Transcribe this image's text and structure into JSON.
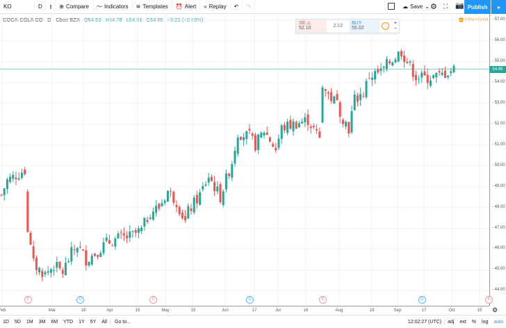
{
  "toolbar": {
    "symbol": "KO",
    "interval": "D",
    "compare": "Compare",
    "indicators": "Indicators",
    "templates": "Templates",
    "alert": "Alert",
    "replay": "Replay",
    "undo": "↶",
    "redo": "↷",
    "save": "Save",
    "publish": "Publish"
  },
  "legend": {
    "name": "COCA-COLA CO · D · Cboe BZX",
    "open": "O54.53",
    "high": "H54.78",
    "low": "L54.01",
    "close": "C54.65",
    "change": "+0.21 (+0.39%)"
  },
  "trade": {
    "sell_label": "SELL",
    "sell_price": "52.10",
    "spread": "2.92",
    "buy_label": "BUY",
    "buy_price": "55.02"
  },
  "premarket": "Pre Market",
  "last_price": "54.65",
  "colors": {
    "up": "#26a69a",
    "down": "#ef5350",
    "accent": "#2196f3"
  },
  "chart_data": {
    "type": "candlestick",
    "symbol": "KO",
    "last": 54.65,
    "price_ticks": [
      "57.00",
      "56.00",
      "55.00",
      "54.00",
      "53.00",
      "52.00",
      "51.00",
      "50.00",
      "49.00",
      "48.00",
      "47.00",
      "46.00",
      "45.00",
      "44.00"
    ],
    "ylim": [
      44,
      57
    ],
    "time_ticks": [
      "Feb",
      "Mar",
      "18",
      "Apr",
      "15",
      "May",
      "15",
      "Jun",
      "17",
      "Jul",
      "16",
      "Aug",
      "19",
      "Sep",
      "17",
      "Oct",
      "15"
    ],
    "close_path": [
      [
        0,
        48.6
      ],
      [
        2,
        49.3
      ],
      [
        8,
        49.8
      ],
      [
        9,
        46.8
      ],
      [
        11,
        45.3
      ],
      [
        13,
        45.0
      ],
      [
        15,
        44.8
      ],
      [
        18,
        45.2
      ],
      [
        21,
        44.9
      ],
      [
        24,
        45.8
      ],
      [
        26,
        46.2
      ],
      [
        29,
        45.5
      ],
      [
        32,
        45.8
      ],
      [
        36,
        46.3
      ],
      [
        40,
        46.5
      ],
      [
        44,
        46.6
      ],
      [
        48,
        46.9
      ],
      [
        51,
        47.8
      ],
      [
        54,
        48.0
      ],
      [
        57,
        48.8
      ],
      [
        60,
        48.3
      ],
      [
        63,
        47.3
      ],
      [
        64,
        47.8
      ],
      [
        68,
        48.6
      ],
      [
        71,
        49.5
      ],
      [
        75,
        48.5
      ],
      [
        79,
        50.2
      ],
      [
        81,
        51.6
      ],
      [
        85,
        51.4
      ],
      [
        87,
        51.0
      ],
      [
        90,
        51.7
      ],
      [
        94,
        50.8
      ],
      [
        96,
        51.8
      ],
      [
        100,
        52.0
      ],
      [
        105,
        52.2
      ],
      [
        109,
        51.3
      ],
      [
        110,
        53.8
      ],
      [
        112,
        53.4
      ],
      [
        115,
        53.0
      ],
      [
        117,
        52.3
      ],
      [
        119,
        51.8
      ],
      [
        121,
        53.2
      ],
      [
        124,
        53.5
      ],
      [
        126,
        54.3
      ],
      [
        130,
        54.5
      ],
      [
        133,
        55.0
      ],
      [
        137,
        55.5
      ],
      [
        139,
        55.0
      ],
      [
        142,
        54.3
      ],
      [
        145,
        54.2
      ],
      [
        150,
        54.3
      ],
      [
        155,
        54.65
      ]
    ],
    "events": [
      {
        "type": "E",
        "day": 9
      },
      {
        "type": "D",
        "day": 27
      },
      {
        "type": "E",
        "day": 52
      },
      {
        "type": "D",
        "day": 85
      },
      {
        "type": "E",
        "day": 110
      },
      {
        "type": "D",
        "day": 144
      },
      {
        "type": "E",
        "day": 167
      }
    ]
  },
  "ranges": [
    "1D",
    "5D",
    "1M",
    "3M",
    "6M",
    "YTD",
    "1Y",
    "5Y",
    "All"
  ],
  "goto": "Go to...",
  "clock": "12:02:27 (UTC)",
  "bottom_right": [
    "adj",
    "ext",
    "%",
    "log",
    "auto"
  ]
}
